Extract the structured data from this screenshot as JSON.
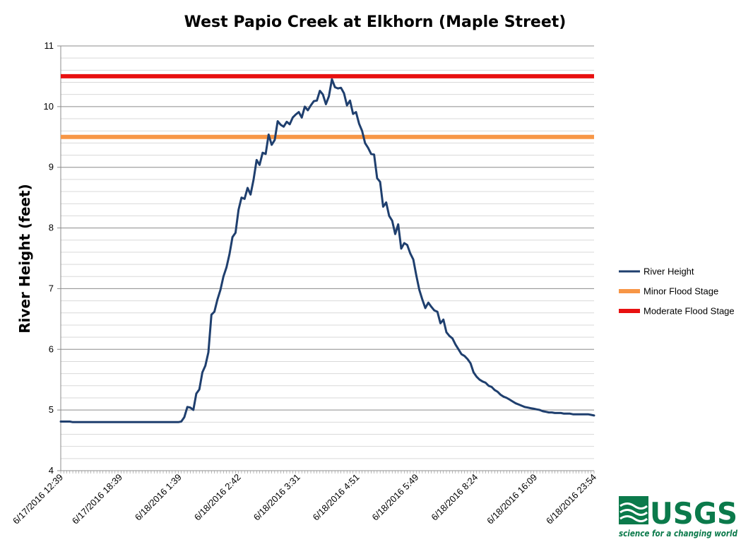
{
  "chart_data": {
    "type": "line",
    "title": "West Papio Creek at Elkhorn (Maple Street)",
    "xlabel": "",
    "ylabel": "River Height (feet)",
    "ylim": [
      4,
      11
    ],
    "yticks": [
      4,
      5,
      6,
      7,
      8,
      9,
      10,
      11
    ],
    "y_minor_step": 0.2,
    "grid": true,
    "legend_position": "right",
    "x_tick_labels": [
      "6/17/2016 12:39",
      "6/17/2016 18:39",
      "6/18/2016 1:39",
      "6/18/2016 2:42",
      "6/18/2016 3:31",
      "6/18/2016 4:51",
      "6/18/2016 5:49",
      "6/18/2016 8:24",
      "6/18/2016 16:09",
      "6/18/2016 23:54"
    ],
    "series": [
      {
        "name": "River Height",
        "color": "#1f3f6e",
        "values": [
          4.81,
          4.81,
          4.81,
          4.81,
          4.8,
          4.8,
          4.8,
          4.8,
          4.8,
          4.8,
          4.8,
          4.8,
          4.8,
          4.8,
          4.8,
          4.8,
          4.8,
          4.8,
          4.8,
          4.8,
          4.8,
          4.8,
          4.8,
          4.8,
          4.8,
          4.8,
          4.8,
          4.8,
          4.8,
          4.8,
          4.8,
          4.8,
          4.8,
          4.8,
          4.8,
          4.8,
          4.8,
          4.8,
          4.8,
          4.8,
          4.81,
          4.88,
          5.05,
          5.04,
          5.0,
          5.27,
          5.34,
          5.62,
          5.73,
          5.95,
          6.57,
          6.62,
          6.82,
          6.98,
          7.2,
          7.35,
          7.57,
          7.85,
          7.92,
          8.3,
          8.5,
          8.48,
          8.66,
          8.55,
          8.8,
          9.12,
          9.04,
          9.24,
          9.22,
          9.54,
          9.37,
          9.45,
          9.76,
          9.7,
          9.67,
          9.75,
          9.71,
          9.82,
          9.87,
          9.91,
          9.82,
          10.0,
          9.94,
          10.02,
          10.09,
          10.1,
          10.26,
          10.2,
          10.04,
          10.17,
          10.45,
          10.32,
          10.3,
          10.31,
          10.22,
          10.02,
          10.1,
          9.88,
          9.91,
          9.72,
          9.6,
          9.4,
          9.32,
          9.22,
          9.21,
          8.82,
          8.76,
          8.35,
          8.42,
          8.2,
          8.12,
          7.9,
          8.06,
          7.66,
          7.75,
          7.72,
          7.58,
          7.48,
          7.22,
          6.98,
          6.82,
          6.68,
          6.77,
          6.7,
          6.64,
          6.62,
          6.43,
          6.49,
          6.28,
          6.22,
          6.18,
          6.08,
          6.0,
          5.92,
          5.89,
          5.84,
          5.77,
          5.62,
          5.55,
          5.5,
          5.47,
          5.45,
          5.4,
          5.38,
          5.33,
          5.3,
          5.25,
          5.22,
          5.2,
          5.17,
          5.14,
          5.11,
          5.09,
          5.07,
          5.05,
          5.04,
          5.03,
          5.02,
          5.01,
          5.0,
          4.98,
          4.97,
          4.96,
          4.96,
          4.95,
          4.95,
          4.95,
          4.94,
          4.94,
          4.94,
          4.93,
          4.93,
          4.93,
          4.93,
          4.93,
          4.93,
          4.92,
          4.91
        ]
      },
      {
        "name": "Minor Flood Stage",
        "color": "#f79646",
        "constant": 9.5
      },
      {
        "name": "Moderate Flood Stage",
        "color": "#e81010",
        "constant": 10.5
      }
    ]
  },
  "logo": {
    "name": "USGS",
    "tagline": "science for a changing world",
    "color": "#0b7a4b"
  }
}
